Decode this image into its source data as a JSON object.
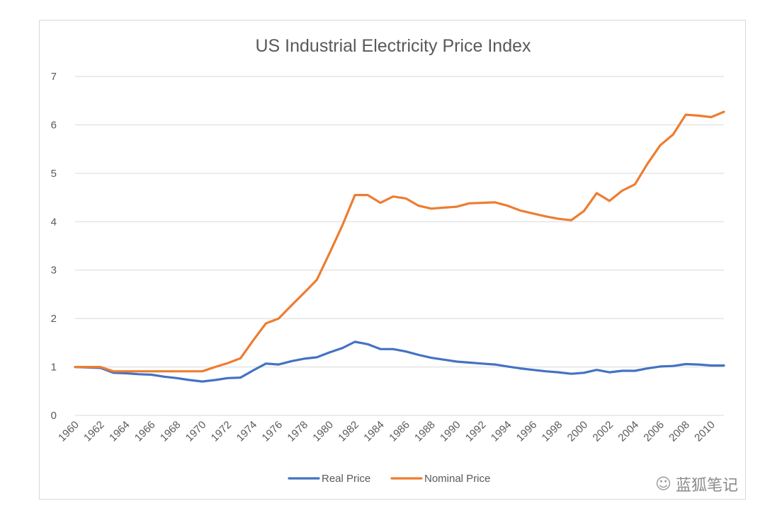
{
  "chart_data": {
    "type": "line",
    "title": "US Industrial Electricity Price Index",
    "xlabel": "",
    "ylabel": "",
    "ylim": [
      0,
      7
    ],
    "yticks": [
      0,
      1,
      2,
      3,
      4,
      5,
      6,
      7
    ],
    "xlim": [
      1960,
      2011
    ],
    "xticks": [
      1960,
      1962,
      1964,
      1966,
      1968,
      1970,
      1972,
      1974,
      1976,
      1978,
      1980,
      1982,
      1984,
      1986,
      1988,
      1990,
      1992,
      1994,
      1996,
      1998,
      2000,
      2002,
      2004,
      2006,
      2008,
      2010
    ],
    "grid": "horizontal",
    "legend_position": "bottom",
    "x": [
      1960,
      1961,
      1962,
      1963,
      1964,
      1965,
      1966,
      1967,
      1968,
      1969,
      1970,
      1971,
      1972,
      1973,
      1974,
      1975,
      1976,
      1977,
      1978,
      1979,
      1980,
      1981,
      1982,
      1983,
      1984,
      1985,
      1986,
      1987,
      1988,
      1989,
      1990,
      1991,
      1992,
      1993,
      1994,
      1995,
      1996,
      1997,
      1998,
      1999,
      2000,
      2001,
      2002,
      2003,
      2004,
      2005,
      2006,
      2007,
      2008,
      2009,
      2010,
      2011
    ],
    "series": [
      {
        "name": "Real Price",
        "color": "#4472C4",
        "values": [
          1.0,
          0.99,
          0.98,
          0.88,
          0.87,
          0.85,
          0.84,
          0.8,
          0.77,
          0.73,
          0.7,
          0.73,
          0.77,
          0.78,
          0.93,
          1.07,
          1.05,
          1.12,
          1.17,
          1.2,
          1.3,
          1.39,
          1.52,
          1.47,
          1.37,
          1.37,
          1.32,
          1.25,
          1.19,
          1.15,
          1.11,
          1.09,
          1.07,
          1.05,
          1.01,
          0.97,
          0.94,
          0.91,
          0.89,
          0.86,
          0.88,
          0.94,
          0.89,
          0.92,
          0.92,
          0.97,
          1.01,
          1.02,
          1.06,
          1.05,
          1.03,
          1.03
        ]
      },
      {
        "name": "Nominal Price",
        "color": "#ED7D31",
        "values": [
          1.0,
          1.0,
          1.0,
          0.91,
          0.91,
          0.91,
          0.91,
          0.91,
          0.91,
          0.91,
          0.91,
          1.0,
          1.08,
          1.18,
          1.55,
          1.9,
          2.0,
          2.27,
          2.53,
          2.8,
          3.35,
          3.92,
          4.55,
          4.55,
          4.39,
          4.52,
          4.48,
          4.33,
          4.27,
          4.29,
          4.31,
          4.38,
          4.39,
          4.4,
          4.33,
          4.23,
          4.17,
          4.11,
          4.06,
          4.03,
          4.22,
          4.59,
          4.43,
          4.64,
          4.77,
          5.2,
          5.58,
          5.8,
          6.21,
          6.19,
          6.16,
          6.27
        ]
      }
    ]
  },
  "watermark": {
    "icon": "wechat-icon",
    "text": "蓝狐笔记"
  }
}
